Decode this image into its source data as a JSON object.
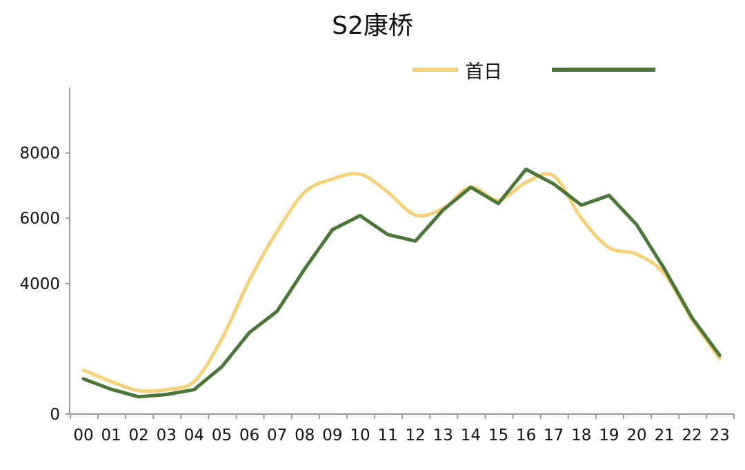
{
  "chart_data": {
    "type": "line",
    "title": "S2康桥",
    "xlabel": "",
    "ylabel": "",
    "categories": [
      "00",
      "01",
      "02",
      "03",
      "04",
      "05",
      "06",
      "07",
      "08",
      "09",
      "10",
      "11",
      "12",
      "13",
      "14",
      "15",
      "16",
      "17",
      "18",
      "19",
      "20",
      "21",
      "22",
      "23"
    ],
    "ylim": [
      0,
      10000
    ],
    "yticks": [
      0,
      4000,
      6000,
      8000
    ],
    "grid": false,
    "legend_position": "top-right",
    "series": [
      {
        "name": "首日",
        "color": "#F7D07A",
        "smooth": true,
        "values": [
          1350,
          1000,
          720,
          750,
          1000,
          2300,
          4100,
          5600,
          6800,
          7200,
          7350,
          6800,
          6100,
          6300,
          6950,
          6550,
          7100,
          7300,
          6000,
          5100,
          4900,
          4300,
          2900,
          1700
        ]
      },
      {
        "name": "",
        "color": "#4A7638",
        "smooth": false,
        "values": [
          1080,
          760,
          530,
          600,
          750,
          1450,
          2500,
          3150,
          4450,
          5650,
          6080,
          5500,
          5300,
          6250,
          6950,
          6450,
          7500,
          7050,
          6400,
          6700,
          5800,
          4450,
          2950,
          1800
        ]
      }
    ]
  }
}
